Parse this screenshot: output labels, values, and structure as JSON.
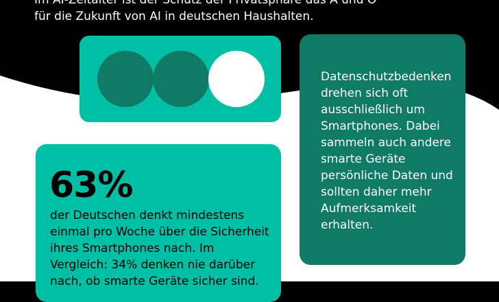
{
  "intro": {
    "lines": [
      "Im AI-Zeitalter ist der Schutz der Privatsphäre das A und O",
      "für die Zukunft von AI in deutschen Haushalten."
    ]
  },
  "dots": {
    "filled_count": 2,
    "total": 3,
    "colors": {
      "filled": "#0f7a66",
      "empty": "#ffffff",
      "card": "#00bfa5"
    }
  },
  "right_card": {
    "lines": [
      "Datenschutzbedenken",
      "drehen sich oft",
      "ausschließlich um",
      "Smartphones. Dabei",
      "sammeln auch andere",
      "smarte Geräte",
      "persönliche Daten und",
      "sollten daher mehr",
      "Aufmerksamkeit",
      "erhalten."
    ]
  },
  "stat_card": {
    "value": "63%",
    "lines": [
      "der Deutschen denkt mindestens",
      "einmal pro Woche über die Sicherheit",
      "ihres Smartphones nach. Im",
      "Vergleich: 34% denken nie darüber",
      "nach, ob smarte Geräte sicher sind."
    ]
  },
  "colors": {
    "background_dark": "#000000",
    "accent": "#00bfa5",
    "dark_teal": "#0f7a66"
  }
}
